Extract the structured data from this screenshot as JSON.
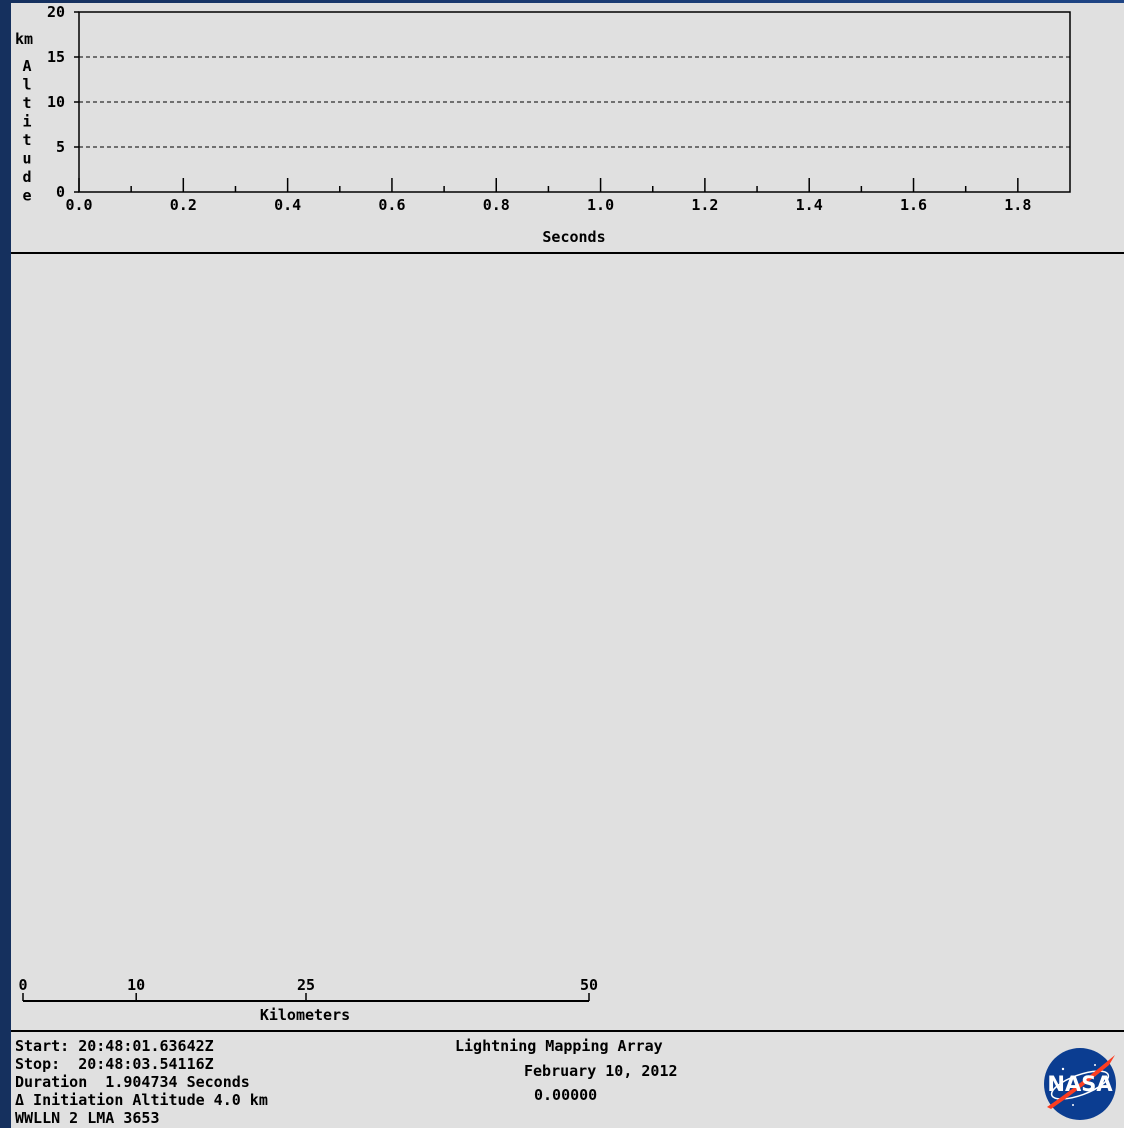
{
  "chart_data": {
    "type": "line",
    "title": "",
    "xlabel": "Seconds",
    "ylabel_unit": "km",
    "ylabel": "Altitude",
    "xlim": [
      0.0,
      1.9
    ],
    "ylim": [
      0,
      20
    ],
    "x_ticks": [
      "0.0",
      "0.2",
      "0.4",
      "0.6",
      "0.8",
      "1.0",
      "1.2",
      "1.4",
      "1.6",
      "1.8"
    ],
    "y_ticks": [
      "0",
      "5",
      "10",
      "15",
      "20"
    ],
    "grid": "dashed horizontal at 5, 10, 15",
    "series": []
  },
  "scale_bar": {
    "labels": [
      "0",
      "10",
      "25",
      "50"
    ],
    "values": [
      0,
      10,
      25,
      50
    ],
    "title": "Kilometers"
  },
  "info": {
    "start": "Start: 20:48:01.63642Z",
    "stop": "Stop:  20:48:03.54116Z",
    "duration": "Duration  1.904734 Seconds",
    "initiation": "Δ Initiation Altitude 4.0 km",
    "network": "WWLLN 2 LMA 3653",
    "system": "Lightning Mapping Array",
    "date": "February 10, 2012",
    "value": "0.00000"
  },
  "logo": {
    "text": "NASA",
    "colors": {
      "blue": "#0b3d91",
      "red": "#fc3d21"
    }
  }
}
